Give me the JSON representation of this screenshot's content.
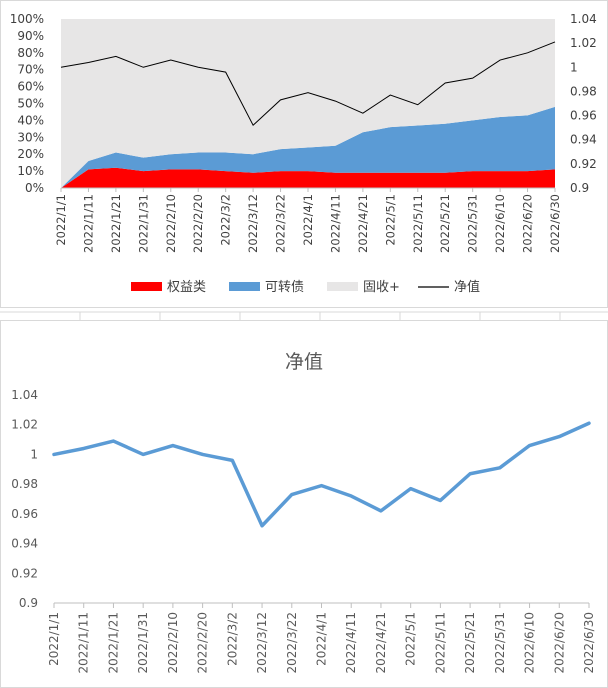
{
  "chart_data": [
    {
      "type": "area",
      "stacked": true,
      "title": "",
      "x": [
        "2022/1/1",
        "2022/1/11",
        "2022/1/21",
        "2022/1/31",
        "2022/2/10",
        "2022/2/20",
        "2022/3/2",
        "2022/3/12",
        "2022/3/22",
        "2022/4/1",
        "2022/4/11",
        "2022/4/21",
        "2022/5/1",
        "2022/5/11",
        "2022/5/21",
        "2022/5/31",
        "2022/6/10",
        "2022/6/20",
        "2022/6/30"
      ],
      "xtick_labels": [
        "2022/1/1",
        "2022/1/11",
        "2022/1/21",
        "2022/1/31",
        "2022/2/10",
        "2022/2/20",
        "2022/3/2",
        "2022/3/12",
        "2022/3/22",
        "2022/4/1",
        "2022/4/11",
        "2022/4/21",
        "2022/5/1",
        "2022/5/11",
        "2022/5/21",
        "2022/5/31",
        "2022/6/10",
        "2022/6/20",
        "2022/6/30"
      ],
      "ylim": [
        0,
        100
      ],
      "yticks": [
        "0%",
        "10%",
        "20%",
        "30%",
        "40%",
        "50%",
        "60%",
        "70%",
        "80%",
        "90%",
        "100%"
      ],
      "y2lim": [
        0.9,
        1.04
      ],
      "y2ticks": [
        "0.9",
        "0.92",
        "0.94",
        "0.96",
        "0.98",
        "1",
        "1.02",
        "1.04"
      ],
      "grid": false,
      "legend_placement": "bottom",
      "series": [
        {
          "name": "权益类",
          "color": "#ff0000",
          "axis": "left",
          "values": [
            0,
            11,
            12,
            10,
            11,
            11,
            10,
            9,
            10,
            10,
            9,
            9,
            9,
            9,
            9,
            10,
            10,
            10,
            11
          ]
        },
        {
          "name": "可转债",
          "color": "#5b9bd5",
          "axis": "left",
          "values": [
            0,
            5,
            9,
            8,
            9,
            10,
            11,
            11,
            13,
            14,
            16,
            24,
            27,
            28,
            29,
            30,
            32,
            33,
            37
          ]
        },
        {
          "name": "固收+",
          "color": "#e7e6e6",
          "axis": "left",
          "values": [
            100,
            84,
            79,
            82,
            80,
            79,
            79,
            80,
            77,
            76,
            75,
            67,
            64,
            63,
            62,
            60,
            58,
            57,
            52
          ]
        },
        {
          "name": "净值",
          "color": "#000000",
          "axis": "right",
          "line": true,
          "values": [
            1.0,
            1.004,
            1.009,
            1.0,
            1.006,
            1.0,
            0.996,
            0.952,
            0.973,
            0.979,
            0.972,
            0.962,
            0.977,
            0.969,
            0.987,
            0.991,
            1.006,
            1.012,
            1.021
          ]
        }
      ]
    },
    {
      "type": "line",
      "title": "净值",
      "x": [
        "2022/1/1",
        "2022/1/11",
        "2022/1/21",
        "2022/1/31",
        "2022/2/10",
        "2022/2/20",
        "2022/3/2",
        "2022/3/12",
        "2022/3/22",
        "2022/4/1",
        "2022/4/11",
        "2022/4/21",
        "2022/5/1",
        "2022/5/11",
        "2022/5/21",
        "2022/5/31",
        "2022/6/10",
        "2022/6/20",
        "2022/6/30"
      ],
      "xtick_labels": [
        "2022/1/1",
        "2022/1/11",
        "2022/1/21",
        "2022/1/31",
        "2022/2/10",
        "2022/2/20",
        "2022/3/2",
        "2022/3/12",
        "2022/3/22",
        "2022/4/1",
        "2022/4/11",
        "2022/4/21",
        "2022/5/1",
        "2022/5/11",
        "2022/5/21",
        "2022/5/31",
        "2022/6/10",
        "2022/6/20",
        "2022/6/30"
      ],
      "ylim": [
        0.9,
        1.04
      ],
      "yticks": [
        "0.9",
        "0.92",
        "0.94",
        "0.96",
        "0.98",
        "1",
        "1.02",
        "1.04"
      ],
      "grid": false,
      "series": [
        {
          "name": "净值",
          "color": "#5b9bd5",
          "values": [
            1.0,
            1.004,
            1.009,
            1.0,
            1.006,
            1.0,
            0.996,
            0.952,
            0.973,
            0.979,
            0.972,
            0.962,
            0.977,
            0.969,
            0.987,
            0.991,
            1.006,
            1.012,
            1.021
          ]
        }
      ]
    }
  ]
}
